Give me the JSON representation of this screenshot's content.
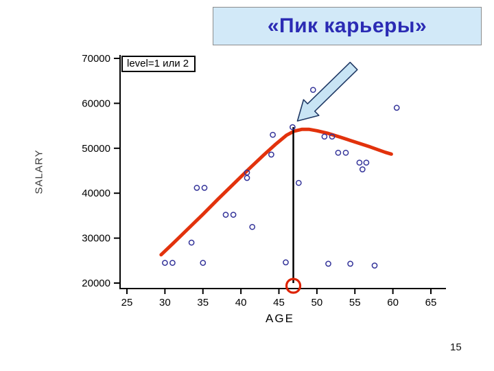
{
  "title": "«Пик карьеры»",
  "page_number": "15",
  "chart_data": {
    "type": "scatter",
    "title": "«Пик карьеры»",
    "xlabel": "AGE",
    "ylabel": "SALARY",
    "annotation_label": "level=1 или 2",
    "x_ticks": [
      25,
      30,
      35,
      40,
      45,
      50,
      55,
      60,
      65
    ],
    "y_ticks": [
      70000,
      60000,
      50000,
      40000,
      30000,
      20000
    ],
    "xlim": [
      24,
      66
    ],
    "ylim": [
      20000,
      70000
    ],
    "legend": "none",
    "grid": false,
    "points": [
      [
        30,
        24500
      ],
      [
        31,
        24500
      ],
      [
        33.5,
        29000
      ],
      [
        35,
        24500
      ],
      [
        34.2,
        41200
      ],
      [
        35.2,
        41200
      ],
      [
        38,
        35200
      ],
      [
        39,
        35200
      ],
      [
        41.5,
        32500
      ],
      [
        40.8,
        44600
      ],
      [
        40.8,
        43400
      ],
      [
        44,
        48600
      ],
      [
        44.2,
        53000
      ],
      [
        46.8,
        54700
      ],
      [
        47.6,
        42300
      ],
      [
        49.5,
        63000
      ],
      [
        45.9,
        24600
      ],
      [
        51,
        52600
      ],
      [
        52,
        52600
      ],
      [
        52.8,
        49000
      ],
      [
        53.8,
        49000
      ],
      [
        55.6,
        46800
      ],
      [
        56.5,
        46800
      ],
      [
        56,
        45300
      ],
      [
        51.5,
        24300
      ],
      [
        54.4,
        24300
      ],
      [
        57.6,
        23900
      ],
      [
        60.5,
        59000
      ]
    ],
    "curve": [
      [
        29.5,
        26300
      ],
      [
        31,
        28700
      ],
      [
        33,
        32000
      ],
      [
        35,
        35300
      ],
      [
        37,
        38700
      ],
      [
        39,
        42000
      ],
      [
        41,
        45300
      ],
      [
        43,
        48500
      ],
      [
        44.5,
        50800
      ],
      [
        46,
        52900
      ],
      [
        47,
        53800
      ],
      [
        48,
        54200
      ],
      [
        49,
        54200
      ],
      [
        50,
        53900
      ],
      [
        51.5,
        53300
      ],
      [
        53,
        52500
      ],
      [
        55,
        51400
      ],
      [
        57,
        50300
      ],
      [
        59,
        49100
      ],
      [
        59.8,
        48700
      ]
    ],
    "peak": {
      "age": 46.9,
      "salary": 54700
    },
    "vertical_line": {
      "age": 46.9,
      "from": 54700,
      "to": 20000
    },
    "colors": {
      "curve": "#e2320c",
      "points": "#333399",
      "marker_circle": "#dd2200",
      "arrow_fill": "#c8e4f4",
      "arrow_stroke": "#1f3864",
      "axis": "#000000",
      "title": "#2b2bb4",
      "title_bg": "#d2e9f8"
    }
  }
}
